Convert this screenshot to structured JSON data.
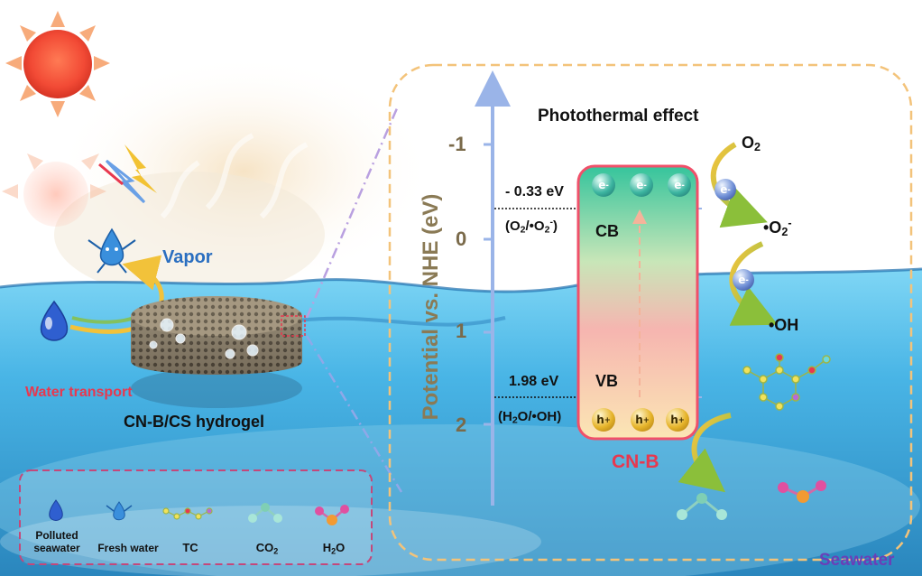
{
  "left_scene": {
    "vapor": "Vapor",
    "water_transport": "Water transport",
    "hydrogel": "CN-B/CS hydrogel"
  },
  "energy_diagram": {
    "title": "Photothermal effect",
    "axis_title": "Potential vs. NHE (eV)",
    "ticks": [
      "-1",
      "0",
      "1",
      "2"
    ],
    "cb_value": "- 0.33 eV",
    "cb_couple": [
      "(O",
      "2",
      "/•O",
      "2",
      "-",
      ")"
    ],
    "vb_value": "1.98 eV",
    "vb_couple": "(H2O/•OH)",
    "vb_couple_parts": [
      "(H",
      "2",
      "O/•OH)"
    ],
    "cb_label": "CB",
    "vb_label": "VB",
    "semiconductor": "CN-B",
    "electron": "e",
    "electron_sign": "-",
    "hole": "h",
    "hole_sign": "+",
    "o2": [
      "O",
      "2"
    ],
    "superoxide": [
      "•O",
      "2",
      "-"
    ],
    "hydroxyl": "•OH"
  },
  "legend": {
    "items": [
      {
        "label": "Polluted seawater",
        "line1": "Polluted",
        "line2": "seawater"
      },
      {
        "label": "Fresh water"
      },
      {
        "label": "TC"
      },
      {
        "label": "CO2",
        "parts": [
          "CO",
          "2"
        ]
      },
      {
        "label": "H2O",
        "parts": [
          "H",
          "2",
          "O"
        ]
      }
    ]
  },
  "seawater": "Seawater",
  "colors": {
    "sky": "#ffffff",
    "sea_top": "#5cc6ee",
    "sea_bottom": "#2d8fc2",
    "sun": "#f3513a",
    "sun_rays": "#f7a26d",
    "band_top": "#3cc49a",
    "band_bottom": "#f7d4a0",
    "band_border": "#f0506a",
    "cn_b_label": "#e8384f",
    "water_transport_label": "#e8384f",
    "vapor_label": "#2a6ec0",
    "seawater_label": "#6a3fb8",
    "axis": "#9ab4e8",
    "dashed_box": "#f3c37a",
    "legend_box": "#c4487a"
  }
}
